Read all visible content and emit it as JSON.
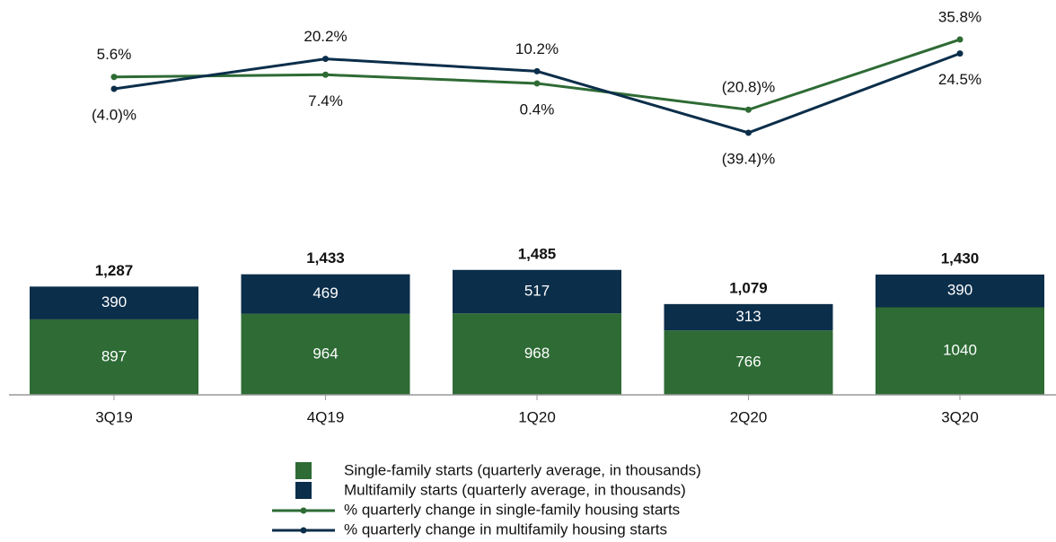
{
  "chart_data": [
    {
      "type": "line",
      "categories": [
        "3Q19",
        "4Q19",
        "1Q20",
        "2Q20",
        "3Q20"
      ],
      "ylim": [
        -50,
        50
      ],
      "series": [
        {
          "name": "% quarterly change in single-family housing starts",
          "color": "#2e6b35",
          "values": [
            5.6,
            7.4,
            0.4,
            -20.8,
            35.8
          ],
          "value_labels": [
            "5.6%",
            "7.4%",
            "0.4%",
            "(20.8)%",
            "35.8%"
          ]
        },
        {
          "name": "% quarterly change in multifamily housing starts",
          "color": "#0b2e4a",
          "values": [
            -4.0,
            20.2,
            10.2,
            -39.4,
            24.5
          ],
          "value_labels": [
            "(4.0)%",
            "20.2%",
            "10.2%",
            "(39.4)%",
            "24.5%"
          ]
        }
      ]
    },
    {
      "type": "bar",
      "stacked": true,
      "categories": [
        "3Q19",
        "4Q19",
        "1Q20",
        "2Q20",
        "3Q20"
      ],
      "ylim": [
        0,
        1600
      ],
      "series": [
        {
          "name": "Single-family starts (quarterly average, in thousands)",
          "color": "#2e6b35",
          "values": [
            897,
            964,
            968,
            766,
            1040
          ]
        },
        {
          "name": "Multifamily starts (quarterly average, in thousands)",
          "color": "#0b2e4a",
          "values": [
            390,
            469,
            517,
            313,
            390
          ]
        }
      ],
      "totals": [
        1287,
        1433,
        1485,
        1079,
        1430
      ],
      "total_labels": [
        "1,287",
        "1,433",
        "1,485",
        "1,079",
        "1,430"
      ]
    }
  ]
}
